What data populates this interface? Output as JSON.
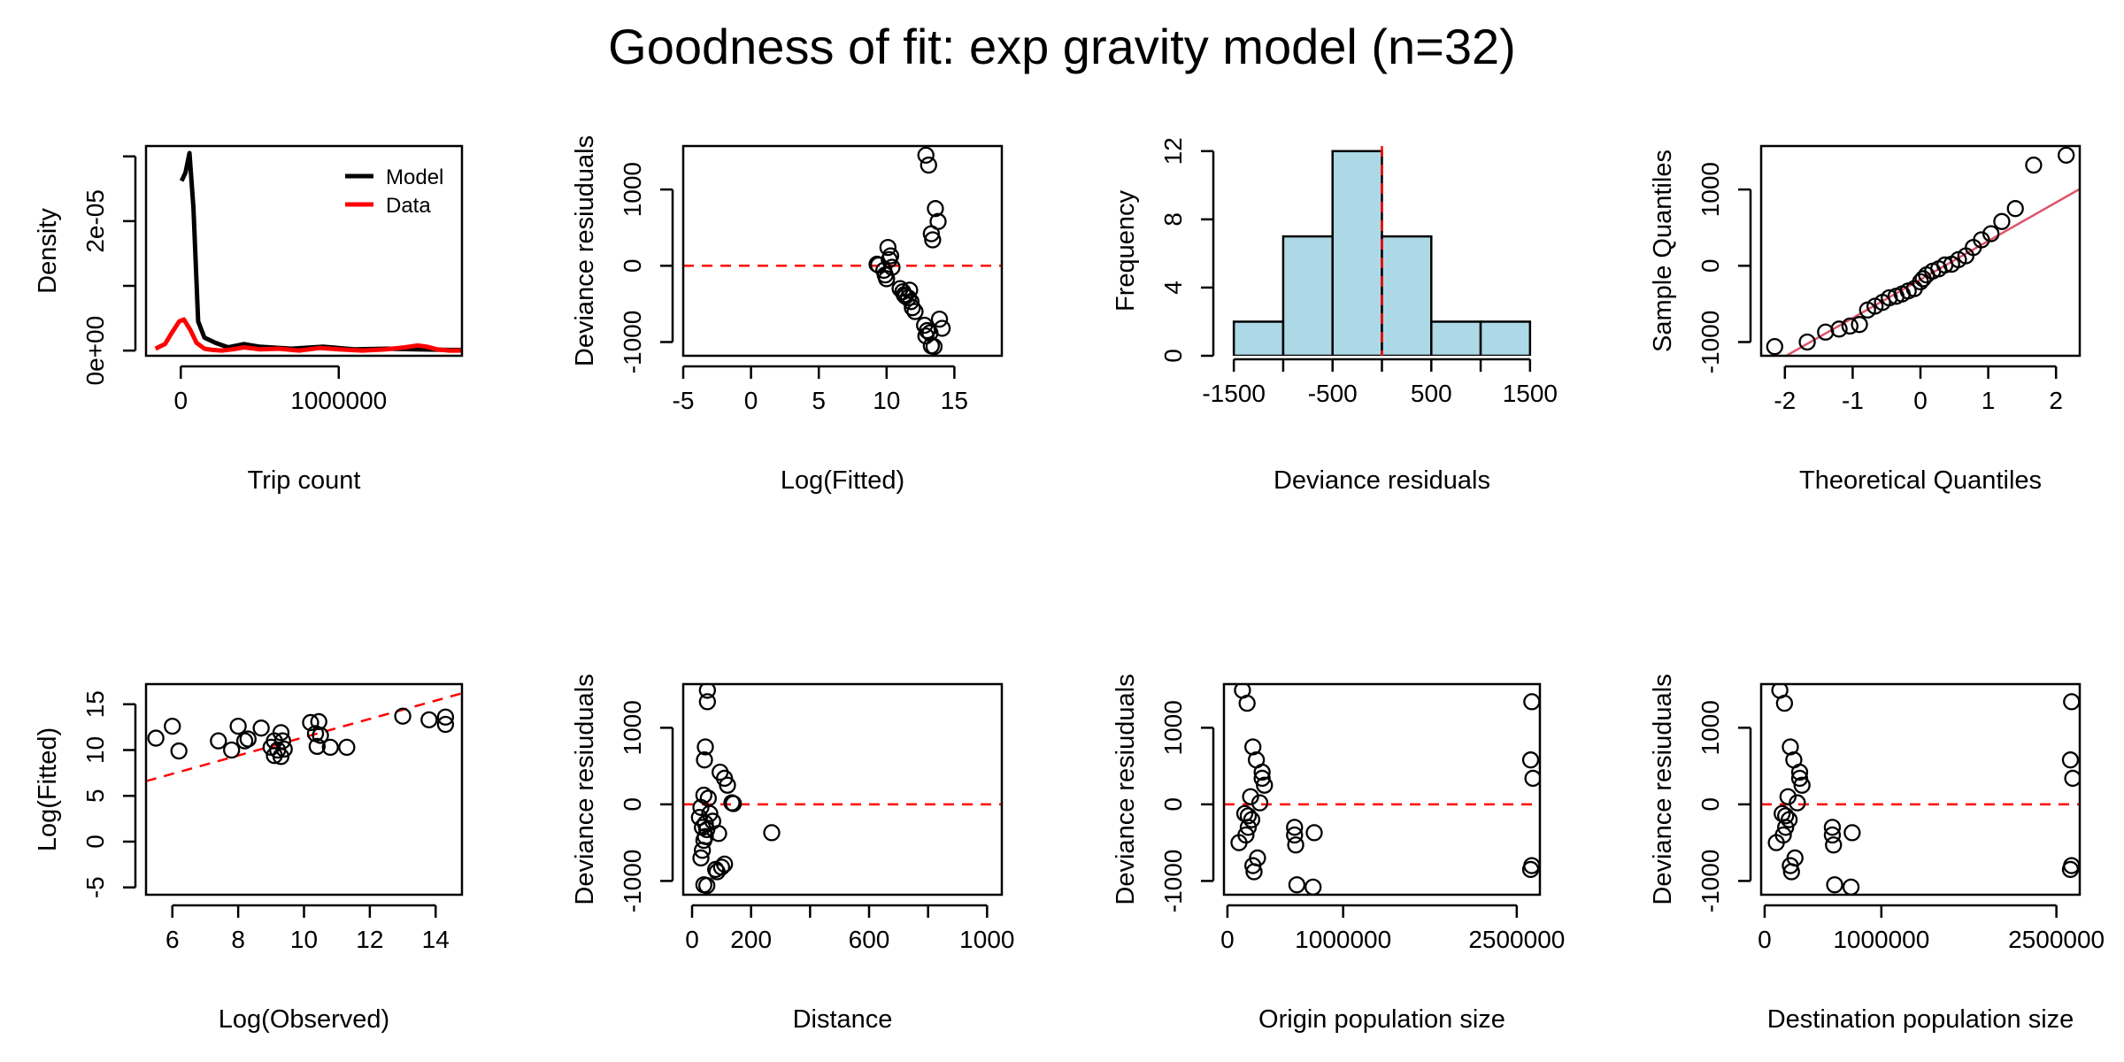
{
  "title": "Goodness of fit: exp gravity model (n=32)",
  "colors": {
    "model": "#000000",
    "data": "#ff0000",
    "refline": "#ff0000",
    "qqline": "#df536b",
    "hist_fill": "#add8e6"
  },
  "chart_data": [
    {
      "id": "density",
      "type": "line",
      "xlabel": "Trip count",
      "ylabel": "Density",
      "xlim": [
        -220000,
        1780000
      ],
      "ylim": [
        -8e-07,
        3.16e-05
      ],
      "xticks": [
        0,
        1000000
      ],
      "xtick_labels": [
        "0",
        "1000000"
      ],
      "yticks": [
        0,
        1e-05,
        2e-05,
        3e-05
      ],
      "ytick_labels": [
        "0e+00",
        "",
        "2e-05",
        ""
      ],
      "legend": {
        "position": "top-right",
        "entries": [
          "Model",
          "Data"
        ]
      },
      "series": [
        {
          "name": "Model",
          "color": "#000000",
          "x": [
            5000,
            30000,
            55000,
            80000,
            110000,
            150000,
            220000,
            300000,
            400000,
            500000,
            700000,
            900000,
            1100000,
            1300000,
            1500000,
            1700000,
            1780000
          ],
          "y": [
            2.62e-05,
            2.75e-05,
            3.05e-05,
            2.2e-05,
            4.5e-06,
            2e-06,
            1.2e-06,
            5e-07,
            1e-06,
            6e-07,
            3e-07,
            6e-07,
            2e-07,
            3e-07,
            2e-07,
            1e-07,
            1e-07
          ]
        },
        {
          "name": "Data",
          "color": "#ff0000",
          "x": [
            -160000,
            -100000,
            -50000,
            -10000,
            20000,
            60000,
            100000,
            150000,
            200000,
            260000,
            330000,
            400000,
            500000,
            620000,
            750000,
            880000,
            1000000,
            1150000,
            1300000,
            1420000,
            1500000,
            1560000,
            1620000,
            1700000,
            1780000
          ],
          "y": [
            3e-07,
            1e-06,
            3e-06,
            4.5e-06,
            4.8e-06,
            3.2e-06,
            1.2e-06,
            3e-07,
            1e-07,
            0.0,
            2e-07,
            5e-07,
            2e-07,
            3e-07,
            0.0,
            4e-07,
            2e-07,
            0.0,
            2e-07,
            5e-07,
            8e-07,
            6e-07,
            2e-07,
            0.0,
            0.0
          ]
        }
      ]
    },
    {
      "id": "resid-vs-logfitted",
      "type": "scatter",
      "xlabel": "Log(Fitted)",
      "ylabel": "Deviance resiuduals",
      "xlim": [
        -5,
        18.5
      ],
      "ylim": [
        -1180,
        1570
      ],
      "xticks": [
        -5,
        0,
        5,
        10,
        15
      ],
      "xtick_labels": [
        "-5",
        "0",
        "5",
        "10",
        "15"
      ],
      "yticks": [
        -1000,
        0,
        1000
      ],
      "ytick_labels": [
        "-1000",
        "0",
        "1000"
      ],
      "hline": 0,
      "x": [
        12.9,
        13.1,
        13.6,
        13.8,
        13.3,
        13.4,
        9.3,
        9.4,
        9.9,
        10.1,
        10.2,
        10.0,
        10.4,
        10.3,
        9.8,
        11.0,
        11.3,
        11.6,
        11.8,
        11.7,
        11.4,
        11.9,
        12.1,
        11.2,
        12.8,
        13.0,
        13.2,
        13.9,
        14.1,
        12.9,
        13.3,
        13.5
      ],
      "y": [
        1450,
        1320,
        750,
        580,
        420,
        340,
        20,
        10,
        -120,
        240,
        80,
        -170,
        -20,
        130,
        -60,
        -300,
        -380,
        -420,
        -470,
        -320,
        -400,
        -550,
        -600,
        -340,
        -780,
        -850,
        -880,
        -700,
        -820,
        -920,
        -1050,
        -1060
      ]
    },
    {
      "id": "resid-histogram",
      "type": "bar",
      "xlabel": "Deviance residuals",
      "ylabel": "Frequency",
      "xlim": [
        -1600,
        1600
      ],
      "ylim": [
        0,
        12.3
      ],
      "xticks": [
        -1500,
        -1000,
        -500,
        0,
        500,
        1000,
        1500
      ],
      "xtick_labels": [
        "-1500",
        "",
        "-500",
        "",
        "500",
        "",
        "1500"
      ],
      "yticks": [
        0,
        4,
        8,
        12
      ],
      "ytick_labels": [
        "0",
        "4",
        "8",
        "12"
      ],
      "bins": [
        [
          -1500,
          -1000
        ],
        [
          -1000,
          -500
        ],
        [
          -500,
          0
        ],
        [
          0,
          500
        ],
        [
          500,
          1000
        ],
        [
          1000,
          1500
        ]
      ],
      "values": [
        2,
        7,
        12,
        7,
        2,
        2
      ],
      "vline": 0
    },
    {
      "id": "qqplot",
      "type": "scatter",
      "xlabel": "Theoretical Quantiles",
      "ylabel": "Sample Quantiles",
      "xlim": [
        -2.35,
        2.35
      ],
      "ylim": [
        -1180,
        1570
      ],
      "xticks": [
        -2,
        -1,
        0,
        1,
        2
      ],
      "xtick_labels": [
        "-2",
        "-1",
        "0",
        "1",
        "2"
      ],
      "yticks": [
        -1000,
        0,
        1000
      ],
      "ytick_labels": [
        "-1000",
        "0",
        "1000"
      ],
      "qqline": {
        "intercept": -180,
        "slope": 505
      },
      "x": [
        -2.15,
        -1.67,
        -1.4,
        -1.2,
        -1.04,
        -0.9,
        -0.78,
        -0.67,
        -0.56,
        -0.46,
        -0.36,
        -0.27,
        -0.18,
        -0.09,
        0.0,
        0.04,
        0.09,
        0.18,
        0.27,
        0.36,
        0.46,
        0.56,
        0.67,
        0.78,
        0.9,
        1.04,
        1.2,
        1.4,
        1.67,
        2.15
      ],
      "y": [
        -1060,
        -1000,
        -870,
        -830,
        -790,
        -770,
        -580,
        -530,
        -480,
        -420,
        -400,
        -370,
        -330,
        -300,
        -210,
        -170,
        -120,
        -70,
        -40,
        10,
        20,
        80,
        130,
        240,
        340,
        420,
        580,
        750,
        1320,
        1450
      ]
    },
    {
      "id": "logfitted-vs-logobserved",
      "type": "scatter",
      "xlabel": "Log(Observed)",
      "ylabel": "Log(Fitted)",
      "xlim": [
        5.2,
        14.8
      ],
      "ylim": [
        -5.8,
        17.2
      ],
      "xticks": [
        6,
        8,
        10,
        12,
        14
      ],
      "xtick_labels": [
        "6",
        "8",
        "10",
        "12",
        "14"
      ],
      "yticks": [
        -5,
        0,
        5,
        10,
        15
      ],
      "ytick_labels": [
        "-5",
        "0",
        "5",
        "10",
        "15"
      ],
      "abline": {
        "intercept": 1.4,
        "slope": 1.0
      },
      "x": [
        5.5,
        6.0,
        6.2,
        7.4,
        7.8,
        8.0,
        8.2,
        8.3,
        8.7,
        9.0,
        9.1,
        9.2,
        9.3,
        9.3,
        9.35,
        9.4,
        10.2,
        10.35,
        10.4,
        10.45,
        10.5,
        10.8,
        11.3,
        13.0,
        13.8,
        14.3,
        14.3,
        9.1
      ],
      "y": [
        11.3,
        12.6,
        9.9,
        11.0,
        10.0,
        12.6,
        11.0,
        11.2,
        12.4,
        10.3,
        9.4,
        10.0,
        11.9,
        9.3,
        11.0,
        10.1,
        13.0,
        11.8,
        10.4,
        13.1,
        11.6,
        10.3,
        10.3,
        13.7,
        13.3,
        13.6,
        12.8,
        11.0
      ]
    },
    {
      "id": "resid-vs-distance",
      "type": "scatter",
      "xlabel": "Distance",
      "ylabel": "Deviance resiuduals",
      "xlim": [
        -30,
        1050
      ],
      "ylim": [
        -1180,
        1570
      ],
      "xticks": [
        0,
        200,
        400,
        600,
        800,
        1000
      ],
      "xtick_labels": [
        "0",
        "200",
        "",
        "600",
        "",
        "1000"
      ],
      "yticks": [
        -1000,
        0,
        1000
      ],
      "ytick_labels": [
        "-1000",
        "0",
        "1000"
      ],
      "hline": 0,
      "x": [
        52,
        52,
        45,
        42,
        95,
        110,
        120,
        135,
        140,
        40,
        55,
        30,
        25,
        60,
        70,
        35,
        50,
        90,
        45,
        40,
        35,
        30,
        80,
        110,
        100,
        85,
        40,
        50,
        270,
        45
      ],
      "y": [
        1490,
        1340,
        750,
        580,
        420,
        340,
        250,
        20,
        10,
        120,
        80,
        -40,
        -170,
        -120,
        -220,
        -300,
        -330,
        -380,
        -420,
        -470,
        -600,
        -700,
        -850,
        -780,
        -820,
        -880,
        -1050,
        -1060,
        -370,
        -250
      ]
    },
    {
      "id": "resid-vs-origin-pop",
      "type": "scatter",
      "xlabel": "Origin population size",
      "ylabel": "Deviance resiuduals",
      "xlim": [
        -30000,
        2700000
      ],
      "ylim": [
        -1180,
        1570
      ],
      "xticks": [
        0,
        1000000,
        2500000
      ],
      "xtick_labels": [
        "0",
        "1000000",
        "2500000"
      ],
      "yticks": [
        -1000,
        0,
        1000
      ],
      "ytick_labels": [
        "-1000",
        "0",
        "1000"
      ],
      "hline": 0,
      "x": [
        130000,
        170000,
        220000,
        250000,
        300000,
        300000,
        320000,
        280000,
        200000,
        150000,
        100000,
        160000,
        180000,
        220000,
        260000,
        230000,
        210000,
        180000,
        580000,
        590000,
        600000,
        740000,
        580000,
        750000,
        2630000,
        2620000,
        2640000,
        2630000,
        2620000
      ],
      "y": [
        1490,
        1320,
        750,
        580,
        420,
        340,
        250,
        20,
        100,
        -120,
        -500,
        -400,
        -300,
        -800,
        -700,
        -880,
        -200,
        -150,
        -400,
        -530,
        -1050,
        -1080,
        -300,
        -370,
        1340,
        580,
        340,
        -800,
        -850
      ]
    },
    {
      "id": "resid-vs-dest-pop",
      "type": "scatter",
      "xlabel": "Destination population size",
      "ylabel": "Deviance resiuduals",
      "xlim": [
        -30000,
        2700000
      ],
      "ylim": [
        -1180,
        1570
      ],
      "xticks": [
        0,
        1000000,
        2500000
      ],
      "xtick_labels": [
        "0",
        "1000000",
        "2500000"
      ],
      "yticks": [
        -1000,
        0,
        1000
      ],
      "ytick_labels": [
        "-1000",
        "0",
        "1000"
      ],
      "hline": 0,
      "x": [
        130000,
        170000,
        220000,
        250000,
        300000,
        300000,
        320000,
        280000,
        200000,
        150000,
        100000,
        160000,
        180000,
        220000,
        260000,
        230000,
        210000,
        180000,
        580000,
        590000,
        600000,
        740000,
        580000,
        750000,
        2630000,
        2620000,
        2640000,
        2630000,
        2620000
      ],
      "y": [
        1490,
        1320,
        750,
        580,
        420,
        340,
        250,
        20,
        100,
        -120,
        -500,
        -400,
        -300,
        -800,
        -700,
        -880,
        -200,
        -150,
        -400,
        -530,
        -1050,
        -1080,
        -300,
        -370,
        1340,
        580,
        340,
        -800,
        -850
      ]
    }
  ]
}
